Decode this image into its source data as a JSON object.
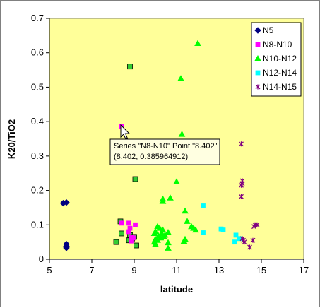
{
  "colors": {
    "plot_bg": "#ffff99",
    "N5": "#000080",
    "N8-N10": "#ff00ff",
    "N10-N12": "#00ff00",
    "N12-N14": "#00ffff",
    "N14-N15": "#800080",
    "tooltip_bg": "#ffffe1"
  },
  "chart_data": {
    "type": "scatter",
    "xlabel": "latitude",
    "ylabel": "K20/TiO2",
    "xlim": [
      5,
      17
    ],
    "ylim": [
      0,
      0.7
    ],
    "x_ticks": [
      "5",
      "7",
      "9",
      "11",
      "13",
      "15",
      "17"
    ],
    "y_ticks": [
      "0",
      "0.1",
      "0.2",
      "0.3",
      "0.4",
      "0.5",
      "0.6",
      "0.7"
    ],
    "grid": false,
    "legend_position": "top-right",
    "series": [
      {
        "name": "N5",
        "marker": "diamond",
        "points": [
          [
            5.65,
            0.163
          ],
          [
            5.8,
            0.165
          ],
          [
            5.8,
            0.044
          ],
          [
            5.8,
            0.038
          ],
          [
            5.8,
            0.033
          ]
        ]
      },
      {
        "name": "N8-N10",
        "marker": "square",
        "points": [
          [
            8.402,
            0.386
          ],
          [
            8.4,
            0.105
          ],
          [
            8.75,
            0.105
          ],
          [
            9.05,
            0.1
          ],
          [
            8.8,
            0.09
          ],
          [
            8.75,
            0.08
          ],
          [
            8.85,
            0.065
          ],
          [
            8.95,
            0.062
          ],
          [
            8.85,
            0.053
          ]
        ]
      },
      {
        "name": "N10-N12",
        "marker": "triangle",
        "points": [
          [
            12.0,
            0.627
          ],
          [
            11.2,
            0.525
          ],
          [
            11.25,
            0.363
          ],
          [
            11.0,
            0.225
          ],
          [
            10.7,
            0.178
          ],
          [
            10.35,
            0.175
          ],
          [
            10.35,
            0.168
          ],
          [
            11.4,
            0.14
          ],
          [
            11.5,
            0.11
          ],
          [
            11.7,
            0.095
          ],
          [
            11.8,
            0.09
          ],
          [
            11.9,
            0.085
          ],
          [
            11.4,
            0.058
          ],
          [
            11.35,
            0.052
          ],
          [
            10.1,
            0.095
          ],
          [
            10.2,
            0.09
          ],
          [
            10.35,
            0.085
          ],
          [
            10.0,
            0.08
          ],
          [
            9.95,
            0.075
          ],
          [
            10.3,
            0.075
          ],
          [
            10.6,
            0.078
          ],
          [
            10.45,
            0.07
          ],
          [
            10.15,
            0.068
          ],
          [
            10.4,
            0.065
          ],
          [
            10.25,
            0.062
          ],
          [
            10.0,
            0.058
          ],
          [
            10.1,
            0.055
          ],
          [
            9.95,
            0.05
          ],
          [
            10.6,
            0.048
          ],
          [
            10.0,
            0.043
          ],
          [
            10.6,
            0.032
          ],
          [
            8.8,
            0.56
          ],
          [
            8.95,
            0.285
          ],
          [
            9.05,
            0.233
          ],
          [
            8.35,
            0.11
          ],
          [
            8.4,
            0.075
          ],
          [
            8.8,
            0.07
          ],
          [
            9.0,
            0.065
          ],
          [
            8.9,
            0.06
          ],
          [
            8.75,
            0.055
          ],
          [
            8.15,
            0.05
          ],
          [
            9.1,
            0.04
          ]
        ]
      },
      {
        "name": "N12-N14",
        "marker": "square",
        "points": [
          [
            12.25,
            0.155
          ],
          [
            12.25,
            0.077
          ],
          [
            13.1,
            0.088
          ],
          [
            13.2,
            0.085
          ],
          [
            13.8,
            0.07
          ],
          [
            13.95,
            0.06
          ],
          [
            13.75,
            0.05
          ]
        ]
      },
      {
        "name": "N14-N15",
        "marker": "star",
        "points": [
          [
            14.05,
            0.335
          ],
          [
            14.1,
            0.228
          ],
          [
            14.1,
            0.22
          ],
          [
            14.05,
            0.215
          ],
          [
            14.05,
            0.182
          ],
          [
            14.7,
            0.1
          ],
          [
            14.8,
            0.1
          ],
          [
            14.65,
            0.095
          ],
          [
            14.1,
            0.06
          ],
          [
            14.15,
            0.055
          ],
          [
            14.6,
            0.055
          ],
          [
            14.2,
            0.05
          ],
          [
            14.45,
            0.035
          ]
        ]
      }
    ],
    "tooltip": {
      "line1": "Series \"N8-N10\" Point \"8.402\"",
      "line2": "(8.402, 0.385964912)"
    }
  }
}
